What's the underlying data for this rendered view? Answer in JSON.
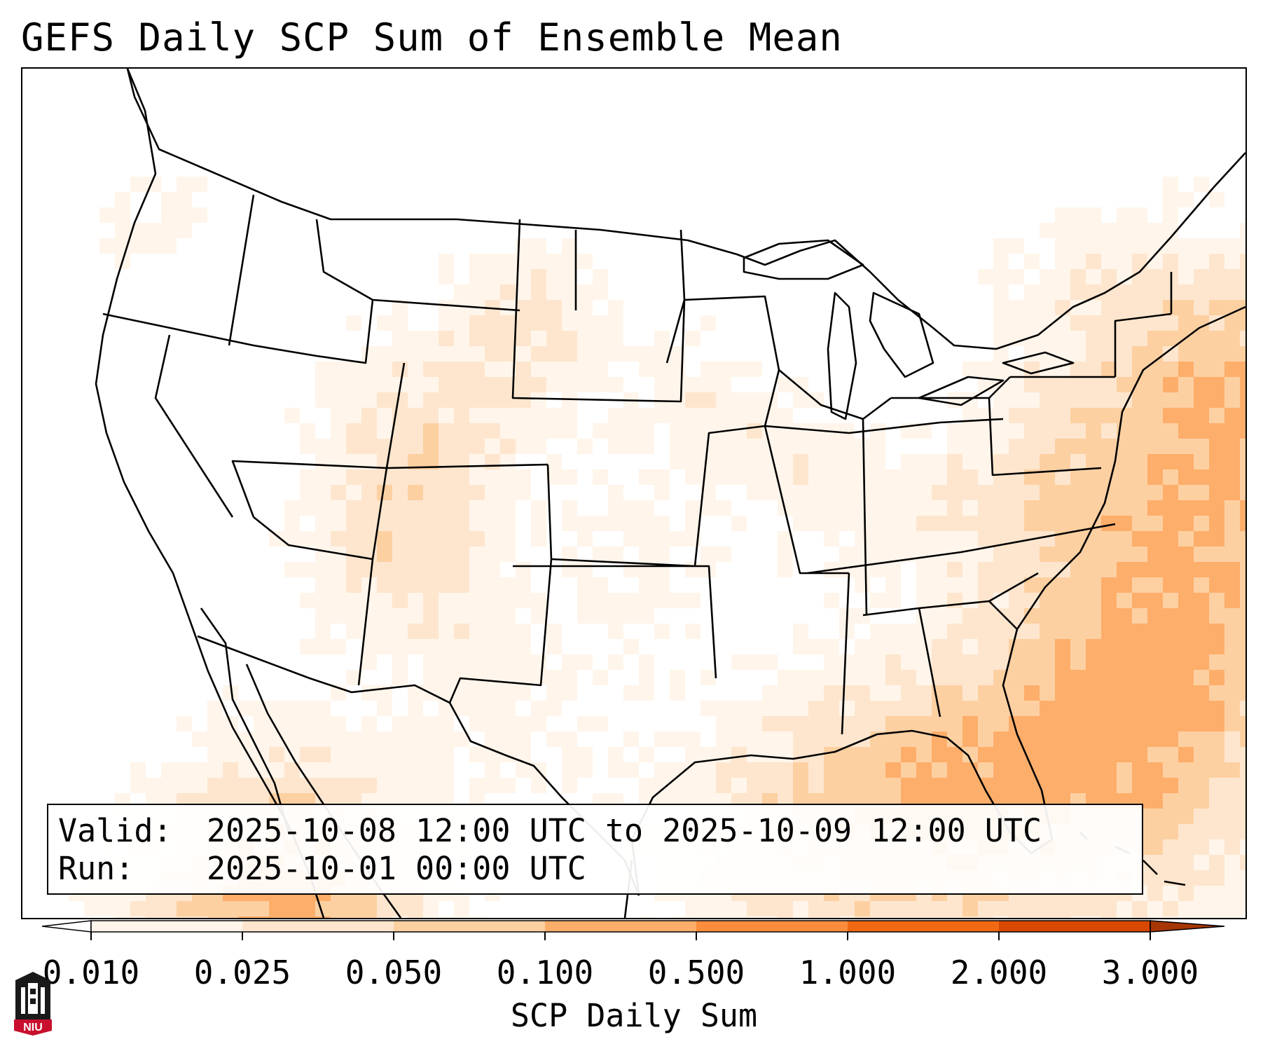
{
  "title": "GEFS Daily SCP Sum of Ensemble Mean",
  "valid_label": "Valid:",
  "valid_value": "2025-10-08 12:00 UTC to 2025-10-09 12:00 UTC",
  "run_label": "Run:",
  "run_value": "2025-10-01 00:00 UTC",
  "colorbar": {
    "label": "SCP Daily Sum",
    "ticks": [
      "0.010",
      "0.025",
      "0.050",
      "0.100",
      "0.500",
      "1.000",
      "2.000",
      "3.000"
    ],
    "colors": [
      "#fff5eb",
      "#fee6ce",
      "#fdd0a2",
      "#fdae6b",
      "#fd8d3c",
      "#f16913",
      "#d94801",
      "#a63603"
    ],
    "extend": "both"
  },
  "logo": {
    "name": "niu-logo",
    "text": "NIU",
    "colors": {
      "red": "#c8102e",
      "black": "#1a1a1a"
    }
  }
}
